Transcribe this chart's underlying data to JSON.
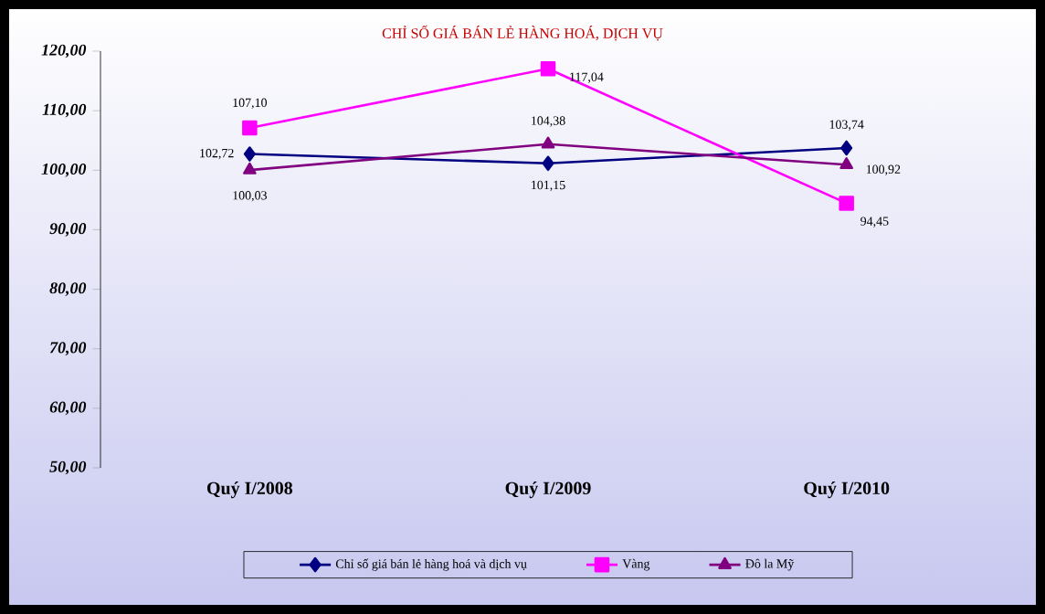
{
  "chart_data": {
    "type": "line",
    "title": "CHỈ SỐ GIÁ BÁN LẺ HÀNG HOÁ, DỊCH VỤ",
    "categories": [
      "Quý I/2008",
      "Quý I/2009",
      "Quý I/2010"
    ],
    "series": [
      {
        "name": "Chỉ số giá bán lẻ hàng hoá và dịch vụ",
        "color": "#000080",
        "marker": "diamond",
        "values": [
          102.72,
          101.15,
          103.74
        ],
        "value_labels": [
          "102,72",
          "101,15",
          "103,74"
        ]
      },
      {
        "name": "Vàng",
        "color": "#ff00ff",
        "marker": "square",
        "values": [
          107.1,
          117.04,
          94.45
        ],
        "value_labels": [
          "107,10",
          "117,04",
          "94,45"
        ]
      },
      {
        "name": "Đô la Mỹ",
        "color": "#800080",
        "marker": "triangle",
        "values": [
          100.03,
          104.38,
          100.92
        ],
        "value_labels": [
          "100,03",
          "104,38",
          "100,92"
        ]
      }
    ],
    "ylim": [
      50,
      120
    ],
    "yticks": [
      {
        "value": 50,
        "label": "50,00"
      },
      {
        "value": 60,
        "label": "60,00"
      },
      {
        "value": 70,
        "label": "70,00"
      },
      {
        "value": 80,
        "label": "80,00"
      },
      {
        "value": 90,
        "label": "90,00"
      },
      {
        "value": 100,
        "label": "100,00"
      },
      {
        "value": 110,
        "label": "110,00"
      },
      {
        "value": 120,
        "label": "120,00"
      }
    ],
    "grid": false,
    "legend": "bottom",
    "line_style": "solid"
  }
}
